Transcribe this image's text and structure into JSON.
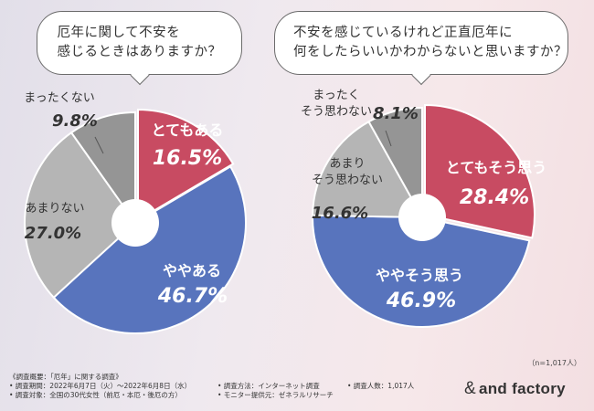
{
  "questions": {
    "q1_line1": "厄年に関して不安を",
    "q1_line2": "感じるときはありますか？",
    "q2_line1": "不安を感じているけれど正直厄年に",
    "q2_line2": "何をしたらいいかわからないと思いますか？"
  },
  "chart_data": [
    {
      "type": "pie",
      "title": "厄年に関して不安を感じるときはありますか？",
      "categories": [
        "とてもある",
        "ややある",
        "あまりない",
        "まったくない"
      ],
      "values": [
        16.5,
        46.7,
        27.0,
        9.8
      ],
      "value_labels": [
        "16.5%",
        "46.7%",
        "27.0%",
        "9.8%"
      ],
      "colors": [
        "#c84b62",
        "#5874bd",
        "#b5b5b5",
        "#959595"
      ]
    },
    {
      "type": "pie",
      "title": "不安を感じているけれど正直厄年に何をしたらいいかわからないと思いますか？",
      "categories": [
        "とてもそう思う",
        "ややそう思う",
        "あまりそう思わない",
        "まったくそう思わない"
      ],
      "category_lines": [
        [
          "とてもそう思う"
        ],
        [
          "ややそう思う"
        ],
        [
          "あまり",
          "そう思わない"
        ],
        [
          "まったく",
          "そう思わない"
        ]
      ],
      "values": [
        28.4,
        46.9,
        16.6,
        8.1
      ],
      "value_labels": [
        "28.4%",
        "46.9%",
        "16.6%",
        "8.1%"
      ],
      "colors": [
        "#c84b62",
        "#5874bd",
        "#b5b5b5",
        "#959595"
      ]
    }
  ],
  "footer": {
    "n_note": "（n=1,017人）",
    "overview": "《調査概要：「厄年」に関する調査》",
    "period": "• 調査期間：2022年6月7日（火）～2022年6月8日（水）",
    "target": "• 調査対象：全国の30代女性（前厄・本厄・後厄の方）",
    "method": "• 調査方法：インターネット調査",
    "monitor": "• モニター提供元：ゼネラルリサーチ",
    "count": "• 調査人数：1,017人"
  },
  "logo": {
    "amp": "&",
    "name": "and factory"
  }
}
